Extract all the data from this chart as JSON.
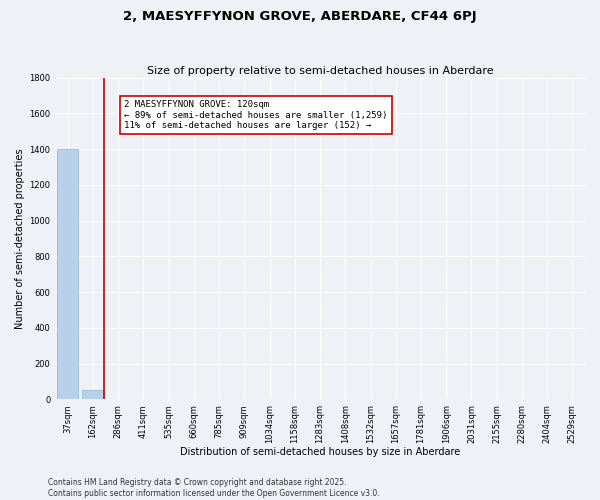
{
  "title": "2, MAESYFFYNON GROVE, ABERDARE, CF44 6PJ",
  "subtitle": "Size of property relative to semi-detached houses in Aberdare",
  "xlabel": "Distribution of semi-detached houses by size in Aberdare",
  "ylabel": "Number of semi-detached properties",
  "categories": [
    "37sqm",
    "162sqm",
    "286sqm",
    "411sqm",
    "535sqm",
    "660sqm",
    "785sqm",
    "909sqm",
    "1034sqm",
    "1158sqm",
    "1283sqm",
    "1408sqm",
    "1532sqm",
    "1657sqm",
    "1781sqm",
    "1906sqm",
    "2031sqm",
    "2155sqm",
    "2280sqm",
    "2404sqm",
    "2529sqm"
  ],
  "values": [
    1400,
    52,
    2,
    0,
    0,
    0,
    0,
    0,
    0,
    0,
    0,
    0,
    0,
    0,
    0,
    0,
    0,
    0,
    0,
    0,
    0
  ],
  "bar_color": "#b8d0e8",
  "bar_edge_color": "#8ab4d0",
  "highlight_color": "#cc0000",
  "ylim": [
    0,
    1800
  ],
  "yticks": [
    0,
    200,
    400,
    600,
    800,
    1000,
    1200,
    1400,
    1600,
    1800
  ],
  "annotation_title": "2 MAESYFFYNON GROVE: 120sqm",
  "annotation_line1": "← 89% of semi-detached houses are smaller (1,259)",
  "annotation_line2": "11% of semi-detached houses are larger (152) →",
  "annotation_box_color": "#cc0000",
  "footer_line1": "Contains HM Land Registry data © Crown copyright and database right 2025.",
  "footer_line2": "Contains public sector information licensed under the Open Government Licence v3.0.",
  "background_color": "#eef2f7",
  "grid_color": "#ffffff",
  "title_fontsize": 9.5,
  "subtitle_fontsize": 8,
  "axis_label_fontsize": 7,
  "tick_fontsize": 6,
  "annotation_fontsize": 6.5,
  "footer_fontsize": 5.5
}
